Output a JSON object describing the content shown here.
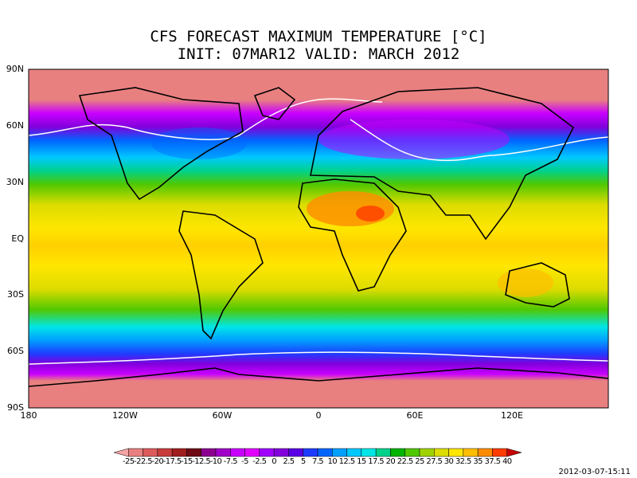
{
  "map": {
    "title_lines": [
      "CFS FORECAST MAXIMUM TEMPERATURE [°C]",
      "INIT: 07MAR12 VALID: MARCH 2012"
    ],
    "lat_labels": [
      "90N",
      "60N",
      "30N",
      "EQ",
      "30S",
      "60S",
      "90S"
    ],
    "lon_labels": [
      "180",
      "120W",
      "60W",
      "0",
      "60E",
      "120E"
    ],
    "colorbar": {
      "levels": [
        -25,
        -22.5,
        -20,
        -17.5,
        -15,
        -12.5,
        -10,
        -7.5,
        -5,
        -2.5,
        0,
        2.5,
        5,
        7.5,
        10,
        12.5,
        15,
        17.5,
        20,
        22.5,
        25,
        27.5,
        30,
        32.5,
        35,
        37.5,
        40
      ],
      "colors": [
        "#f4a3a3",
        "#e98080",
        "#dc5a5a",
        "#c83c3c",
        "#a01e1e",
        "#6e0a14",
        "#8c0090",
        "#a000c8",
        "#c800ff",
        "#e100ff",
        "#a000ff",
        "#8200dc",
        "#5a00e6",
        "#1e3cff",
        "#0064ff",
        "#00a0ff",
        "#00c8ff",
        "#00e6e6",
        "#00d28c",
        "#00b400",
        "#50c800",
        "#a0d200",
        "#dcdc00",
        "#ffe600",
        "#ffbe00",
        "#ff8c00",
        "#ff3c00",
        "#c80000"
      ]
    },
    "timestamp": "2012-03-07-15:11"
  }
}
